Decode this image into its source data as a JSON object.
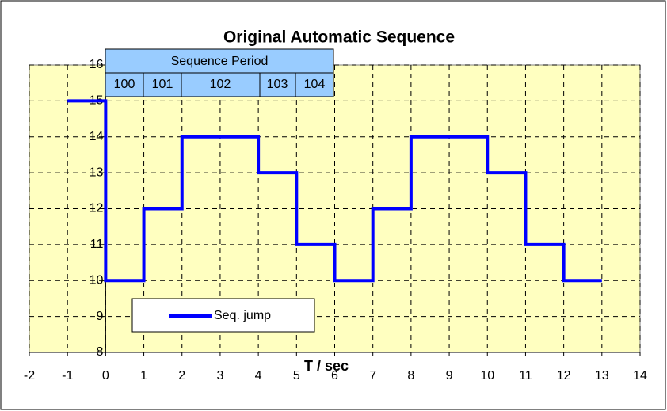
{
  "chart_data": {
    "type": "line",
    "title": "Original Automatic Sequence",
    "xlabel": "T / sec",
    "x": [
      -1,
      0,
      0,
      1,
      1,
      2,
      2,
      4,
      4,
      5,
      5,
      6,
      6,
      7,
      7,
      8,
      8,
      10,
      10,
      11,
      11,
      12,
      12,
      13
    ],
    "series": [
      {
        "name": "Seq. jump",
        "color": "#0000ff",
        "values": [
          15,
          15,
          10,
          10,
          12,
          12,
          14,
          14,
          13,
          13,
          11,
          11,
          10,
          10,
          12,
          12,
          14,
          14,
          13,
          13,
          11,
          11,
          10,
          10
        ]
      }
    ],
    "xlim": [
      -2,
      14
    ],
    "xticks": [
      -2,
      -1,
      0,
      1,
      2,
      3,
      4,
      5,
      6,
      7,
      8,
      9,
      10,
      11,
      12,
      13,
      14
    ],
    "ylim": [
      8,
      16
    ],
    "yticks": [
      8,
      9,
      10,
      11,
      12,
      13,
      14,
      15,
      16
    ],
    "grid": true,
    "annotation_table": {
      "header": "Sequence Period",
      "cells": [
        "100",
        "101",
        "102",
        "103",
        "104"
      ]
    }
  }
}
